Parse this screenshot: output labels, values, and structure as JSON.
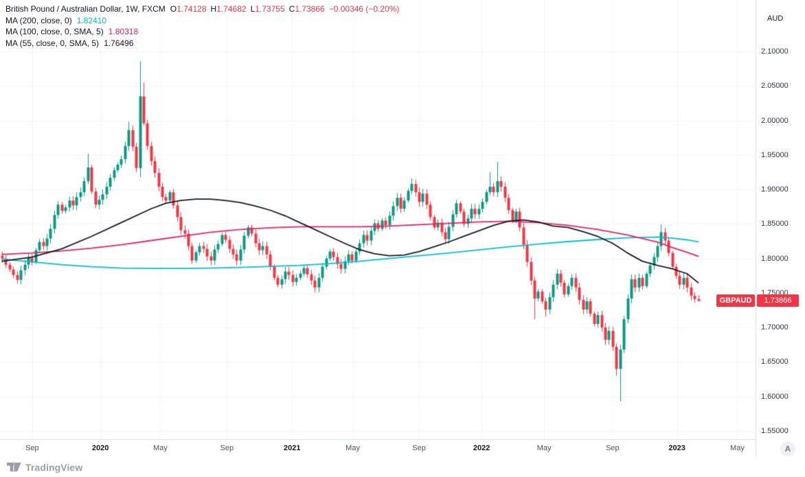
{
  "header": {
    "title": "British Pound / Australian Dollar, 1W, FXCM",
    "ohlc": {
      "o_label": "O",
      "o_value": "1.74128",
      "h_label": "H",
      "h_value": "1.74682",
      "l_label": "L",
      "l_value": "1.73755",
      "c_label": "C",
      "c_value": "1.73866",
      "change": "−0.00346 (−0.20%)"
    },
    "indicators": [
      {
        "label": "MA (200, close, 0)",
        "value": "1.82410",
        "color": "#00bcd4"
      },
      {
        "label": "MA (100, close, 0, SMA, 5)",
        "value": "1.80318",
        "color": "#e91e63"
      },
      {
        "label": "MA (55, close, 0, SMA, 5)",
        "value": "1.76496",
        "color": "#131722"
      }
    ]
  },
  "price_axis": {
    "currency": "AUD",
    "symbol_flag": "GBPAUD",
    "last_price": "1.73866",
    "tick_labels": [
      "2.10000",
      "2.05000",
      "2.00000",
      "1.95000",
      "1.90000",
      "1.85000",
      "1.80000",
      "1.75000",
      "1.70000",
      "1.65000",
      "1.60000",
      "1.55000"
    ]
  },
  "time_axis": {
    "ticks": [
      {
        "label": "Sep",
        "w": 8.1,
        "bold": false
      },
      {
        "label": "2020",
        "w": 26.4,
        "bold": true
      },
      {
        "label": "May",
        "w": 42.5,
        "bold": false
      },
      {
        "label": "Sep",
        "w": 60.4,
        "bold": false
      },
      {
        "label": "2021",
        "w": 77.9,
        "bold": true
      },
      {
        "label": "May",
        "w": 94.2,
        "bold": false
      },
      {
        "label": "Sep",
        "w": 112,
        "bold": false
      },
      {
        "label": "2022",
        "w": 128.8,
        "bold": true
      },
      {
        "label": "May",
        "w": 145.6,
        "bold": false
      },
      {
        "label": "Sep",
        "w": 164,
        "bold": false
      },
      {
        "label": "2023",
        "w": 181.3,
        "bold": true
      },
      {
        "label": "May",
        "w": 197.5,
        "bold": false
      }
    ]
  },
  "footer": {
    "brand": "TradingView",
    "corner_badge": "A"
  },
  "chart_data": {
    "type": "candlestick",
    "symbol": "GBPAUD",
    "symbol_name": "British Pound / Australian Dollar",
    "interval": "1W",
    "exchange": "FXCM",
    "title": "British Pound / Australian Dollar, 1W, FXCM",
    "y_axis": {
      "currency": "AUD",
      "min": 1.55,
      "max": 2.1,
      "step": 0.05
    },
    "x_axis": {
      "start": "Jul 2019",
      "end": "Feb 2023",
      "unit": "weeks"
    },
    "grid": true,
    "colors": {
      "up": "#089981",
      "down": "#f23645",
      "axis_text": "#363a45"
    },
    "last_bar": {
      "open": 1.74128,
      "high": 1.74682,
      "low": 1.73755,
      "close": 1.73866,
      "change": -0.00346,
      "change_pct": -0.2
    },
    "closes": [
      1.8,
      1.791,
      1.784,
      1.776,
      1.769,
      1.783,
      1.791,
      1.801,
      1.795,
      1.812,
      1.824,
      1.818,
      1.829,
      1.843,
      1.863,
      1.878,
      1.869,
      1.874,
      1.884,
      1.877,
      1.889,
      1.896,
      1.912,
      1.932,
      1.897,
      1.878,
      1.885,
      1.893,
      1.904,
      1.917,
      1.928,
      1.936,
      1.944,
      1.963,
      1.986,
      1.962,
      1.931,
      2.035,
      1.996,
      1.963,
      1.941,
      1.924,
      1.904,
      1.889,
      1.884,
      1.896,
      1.877,
      1.86,
      1.841,
      1.836,
      1.818,
      1.797,
      1.809,
      1.818,
      1.814,
      1.803,
      1.797,
      1.813,
      1.821,
      1.834,
      1.827,
      1.814,
      1.806,
      1.797,
      1.813,
      1.833,
      1.845,
      1.836,
      1.822,
      1.812,
      1.818,
      1.806,
      1.788,
      1.772,
      1.762,
      1.77,
      1.781,
      1.776,
      1.766,
      1.772,
      1.778,
      1.786,
      1.777,
      1.768,
      1.758,
      1.772,
      1.788,
      1.8,
      1.81,
      1.802,
      1.792,
      1.785,
      1.796,
      1.806,
      1.797,
      1.81,
      1.822,
      1.834,
      1.826,
      1.84,
      1.851,
      1.843,
      1.855,
      1.848,
      1.862,
      1.876,
      1.888,
      1.872,
      1.884,
      1.898,
      1.908,
      1.896,
      1.882,
      1.894,
      1.878,
      1.86,
      1.845,
      1.852,
      1.838,
      1.828,
      1.846,
      1.864,
      1.88,
      1.868,
      1.85,
      1.858,
      1.872,
      1.864,
      1.872,
      1.882,
      1.896,
      1.904,
      1.896,
      1.912,
      1.904,
      1.888,
      1.87,
      1.855,
      1.868,
      1.845,
      1.82,
      1.795,
      1.768,
      1.742,
      1.752,
      1.738,
      1.726,
      1.744,
      1.762,
      1.778,
      1.765,
      1.748,
      1.76,
      1.772,
      1.758,
      1.74,
      1.726,
      1.738,
      1.72,
      1.705,
      1.718,
      1.7,
      1.682,
      1.695,
      1.672,
      1.64,
      1.668,
      1.712,
      1.742,
      1.77,
      1.758,
      1.772,
      1.76,
      1.778,
      1.79,
      1.802,
      1.818,
      1.838,
      1.826,
      1.808,
      1.788,
      1.775,
      1.762,
      1.772,
      1.758,
      1.746,
      1.74128,
      1.73866
    ],
    "candle_overrides": [
      [
        23,
        null,
        1.952,
        null,
        null
      ],
      [
        34,
        null,
        1.998,
        null,
        null
      ],
      [
        37,
        1.931,
        2.086,
        1.918,
        2.035
      ],
      [
        38,
        null,
        2.055,
        null,
        null
      ],
      [
        110,
        null,
        1.916,
        null,
        null
      ],
      [
        131,
        null,
        1.925,
        null,
        null
      ],
      [
        133,
        null,
        1.94,
        null,
        null
      ],
      [
        143,
        null,
        null,
        1.712,
        null
      ],
      [
        146,
        null,
        null,
        1.716,
        null
      ],
      [
        165,
        null,
        null,
        1.63,
        null
      ],
      [
        166,
        1.64,
        1.675,
        1.593,
        1.668
      ],
      [
        177,
        null,
        1.849,
        null,
        null
      ],
      [
        187,
        1.74128,
        1.74682,
        1.73755,
        1.73866
      ]
    ],
    "moving_averages": [
      {
        "name": "MA 200",
        "color": "#00bcd4",
        "last_value": 1.8241,
        "points": [
          [
            0,
            1.799
          ],
          [
            8,
            1.795
          ],
          [
            16,
            1.791
          ],
          [
            24,
            1.788
          ],
          [
            32,
            1.786
          ],
          [
            40,
            1.7855
          ],
          [
            48,
            1.7855
          ],
          [
            56,
            1.786
          ],
          [
            64,
            1.787
          ],
          [
            72,
            1.7885
          ],
          [
            80,
            1.79
          ],
          [
            88,
            1.7925
          ],
          [
            96,
            1.796
          ],
          [
            104,
            1.8
          ],
          [
            112,
            1.804
          ],
          [
            120,
            1.808
          ],
          [
            128,
            1.8125
          ],
          [
            136,
            1.817
          ],
          [
            144,
            1.821
          ],
          [
            152,
            1.8245
          ],
          [
            160,
            1.8275
          ],
          [
            168,
            1.83
          ],
          [
            176,
            1.831
          ],
          [
            180,
            1.8295
          ],
          [
            184,
            1.827
          ],
          [
            187,
            1.8241
          ]
        ]
      },
      {
        "name": "MA 100",
        "color": "#e91e63",
        "last_value": 1.80318,
        "points": [
          [
            0,
            1.806
          ],
          [
            8,
            1.808
          ],
          [
            16,
            1.811
          ],
          [
            24,
            1.815
          ],
          [
            32,
            1.82
          ],
          [
            40,
            1.826
          ],
          [
            48,
            1.832
          ],
          [
            56,
            1.838
          ],
          [
            64,
            1.842
          ],
          [
            72,
            1.8445
          ],
          [
            80,
            1.846
          ],
          [
            88,
            1.846
          ],
          [
            96,
            1.846
          ],
          [
            104,
            1.847
          ],
          [
            112,
            1.849
          ],
          [
            120,
            1.851
          ],
          [
            128,
            1.853
          ],
          [
            136,
            1.854
          ],
          [
            144,
            1.852
          ],
          [
            152,
            1.848
          ],
          [
            160,
            1.842
          ],
          [
            168,
            1.834
          ],
          [
            176,
            1.824
          ],
          [
            180,
            1.816
          ],
          [
            184,
            1.809
          ],
          [
            187,
            1.80318
          ]
        ]
      },
      {
        "name": "MA 55",
        "color": "#131722",
        "last_value": 1.76496,
        "points": [
          [
            0,
            1.796
          ],
          [
            8,
            1.802
          ],
          [
            16,
            1.814
          ],
          [
            24,
            1.832
          ],
          [
            32,
            1.852
          ],
          [
            40,
            1.872
          ],
          [
            44,
            1.88
          ],
          [
            48,
            1.884
          ],
          [
            52,
            1.886
          ],
          [
            56,
            1.886
          ],
          [
            60,
            1.884
          ],
          [
            64,
            1.881
          ],
          [
            68,
            1.876
          ],
          [
            72,
            1.87
          ],
          [
            76,
            1.862
          ],
          [
            80,
            1.852
          ],
          [
            84,
            1.842
          ],
          [
            88,
            1.832
          ],
          [
            92,
            1.822
          ],
          [
            96,
            1.813
          ],
          [
            100,
            1.807
          ],
          [
            104,
            1.804
          ],
          [
            108,
            1.805
          ],
          [
            112,
            1.81
          ],
          [
            116,
            1.817
          ],
          [
            120,
            1.824
          ],
          [
            124,
            1.832
          ],
          [
            128,
            1.84
          ],
          [
            132,
            1.848
          ],
          [
            136,
            1.854
          ],
          [
            140,
            1.856
          ],
          [
            144,
            1.853
          ],
          [
            148,
            1.847
          ],
          [
            152,
            1.845
          ],
          [
            156,
            1.839
          ],
          [
            160,
            1.832
          ],
          [
            164,
            1.822
          ],
          [
            168,
            1.808
          ],
          [
            172,
            1.796
          ],
          [
            176,
            1.79
          ],
          [
            180,
            1.785
          ],
          [
            184,
            1.778
          ],
          [
            187,
            1.76496
          ]
        ]
      }
    ]
  }
}
